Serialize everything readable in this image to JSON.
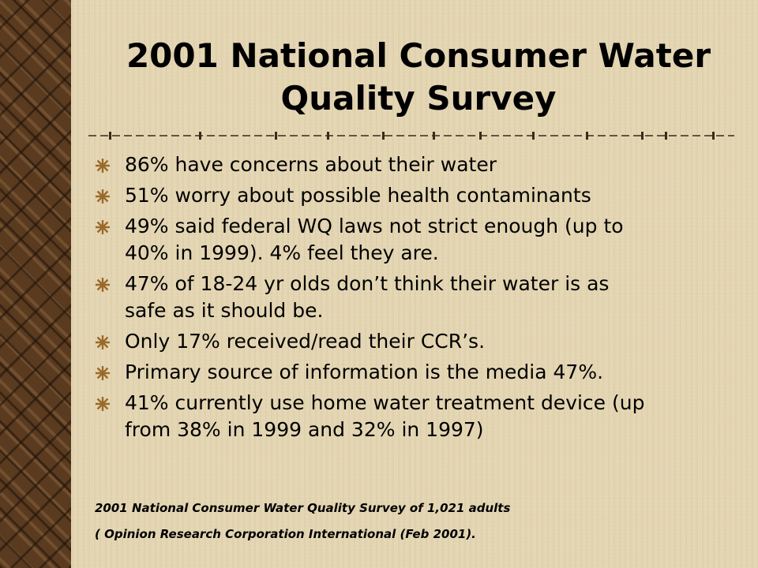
{
  "slide": {
    "title_line1": "2001 National Consumer Water",
    "title_line2": "Quality Survey",
    "bullet_icon": "asterisk-star-icon",
    "bullets": [
      [
        "86% have concerns about their water"
      ],
      [
        "51% worry about possible health contaminants"
      ],
      [
        "49% said federal WQ laws not strict enough (up to",
        "40% in 1999).  4% feel they are."
      ],
      [
        "47% of 18-24 yr olds don’t think their water is as",
        "safe as it should be."
      ],
      [
        "Only 17% received/read their CCR’s."
      ],
      [
        "Primary source of information is the media 47%."
      ],
      [
        "41% currently use home water treatment device (up",
        "from 38% in 1999 and 32% in 1997)"
      ]
    ],
    "source_line1": "2001 National Consumer Water Quality Survey of 1,021 adults",
    "source_line2": "( Opinion Research Corporation International (Feb 2001)."
  },
  "colors": {
    "background": "#e4d6b3",
    "left_strip": "#5a3b20",
    "bullet_icon": "#9a6a2a",
    "divider": "#3a2a18"
  }
}
